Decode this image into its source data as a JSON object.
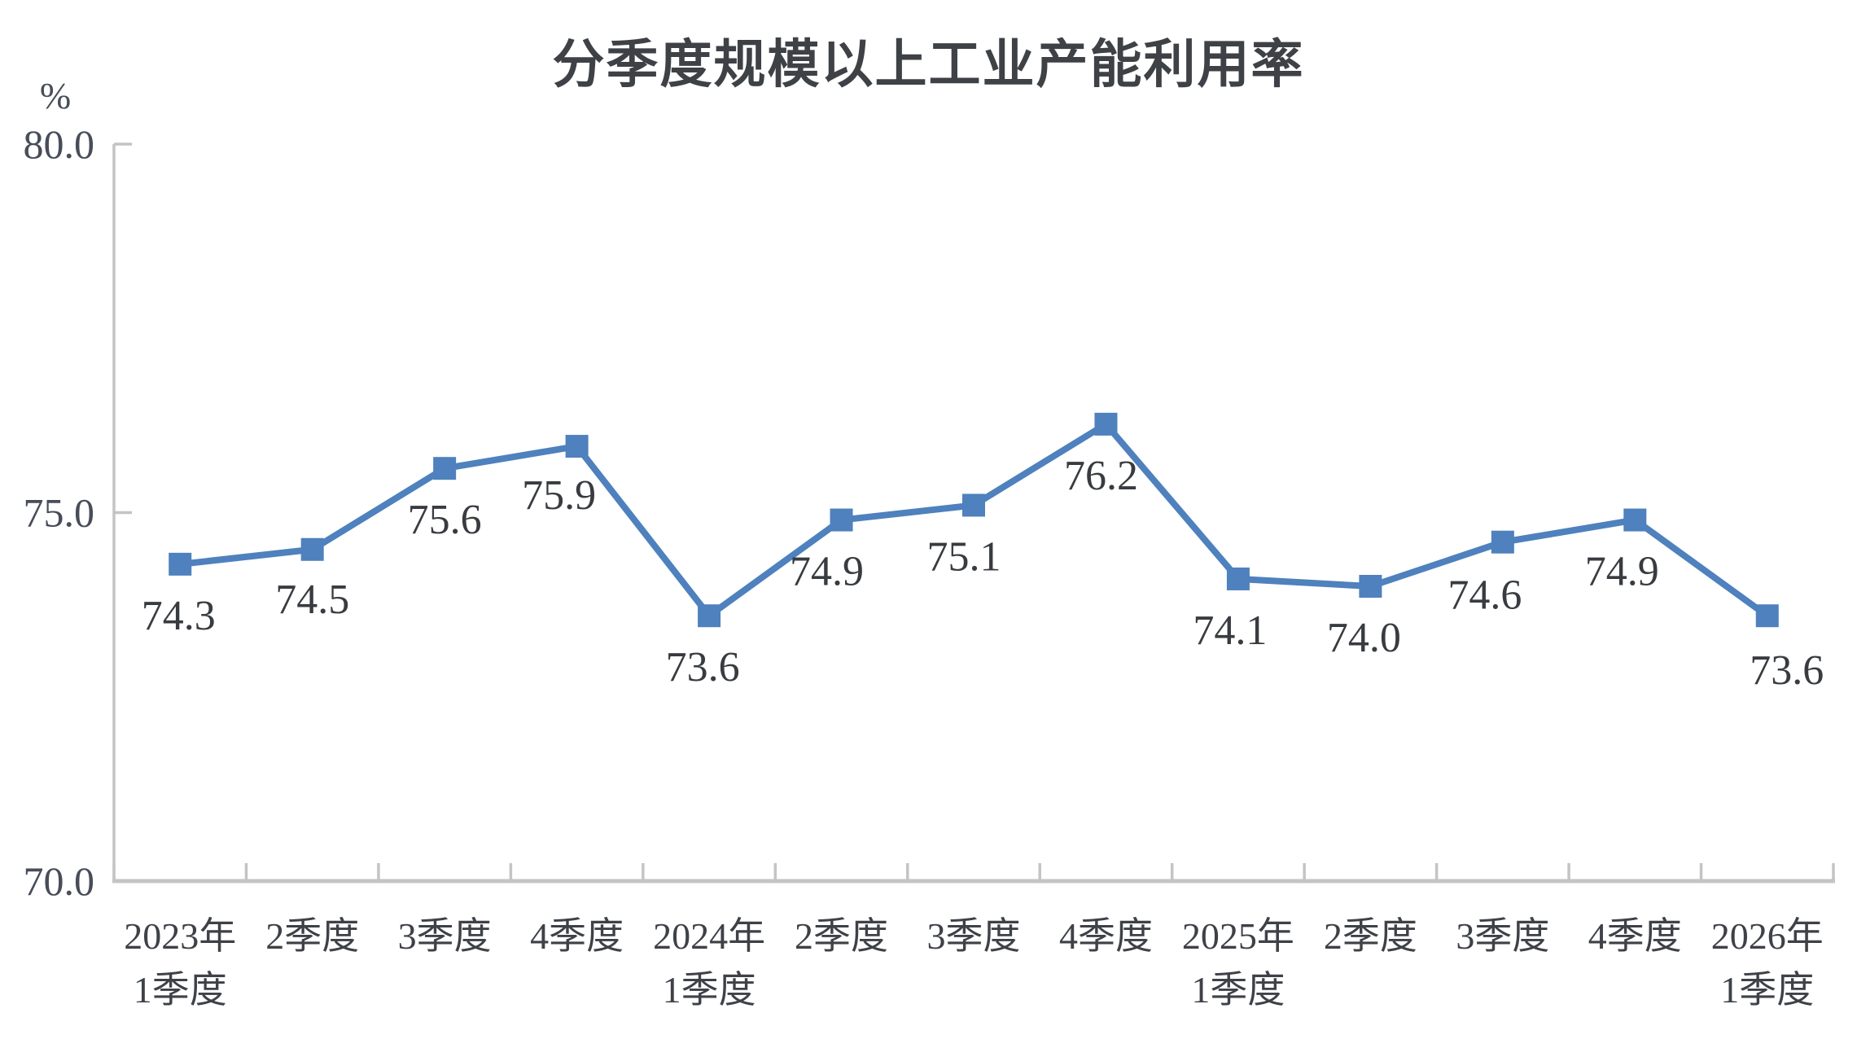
{
  "chart_data": {
    "type": "line",
    "title": "分季度规模以上工业产能利用率",
    "unit_label": "%",
    "categories": [
      "2023年\n1季度",
      "2季度",
      "3季度",
      "4季度",
      "2024年\n1季度",
      "2季度",
      "3季度",
      "4季度",
      "2025年\n1季度",
      "2季度",
      "3季度",
      "4季度",
      "2026年\n1季度"
    ],
    "values": [
      74.3,
      74.5,
      75.6,
      75.9,
      73.6,
      74.9,
      75.1,
      76.2,
      74.1,
      74.0,
      74.6,
      74.9,
      73.6
    ],
    "data_labels": [
      "74.3",
      "74.5",
      "75.6",
      "75.9",
      "73.6",
      "74.9",
      "75.1",
      "76.2",
      "74.1",
      "74.0",
      "74.6",
      "74.9",
      "73.6"
    ],
    "y_ticks": [
      {
        "value": 80,
        "label": "80.0"
      },
      {
        "value": 75,
        "label": "75.0"
      },
      {
        "value": 70,
        "label": "70.0"
      }
    ],
    "ylim": [
      70,
      80
    ],
    "xlabel": "",
    "ylabel": "%",
    "grid": false,
    "legend": false,
    "marker": "square",
    "label_position": "below",
    "colors": {
      "series": "#4E81BD",
      "axis": "#c4c4c4",
      "y_tick_text": "#474d59",
      "x_tick_text": "#3e4147",
      "data_label_text": "#383b40",
      "title_text": "#3e4145"
    }
  }
}
